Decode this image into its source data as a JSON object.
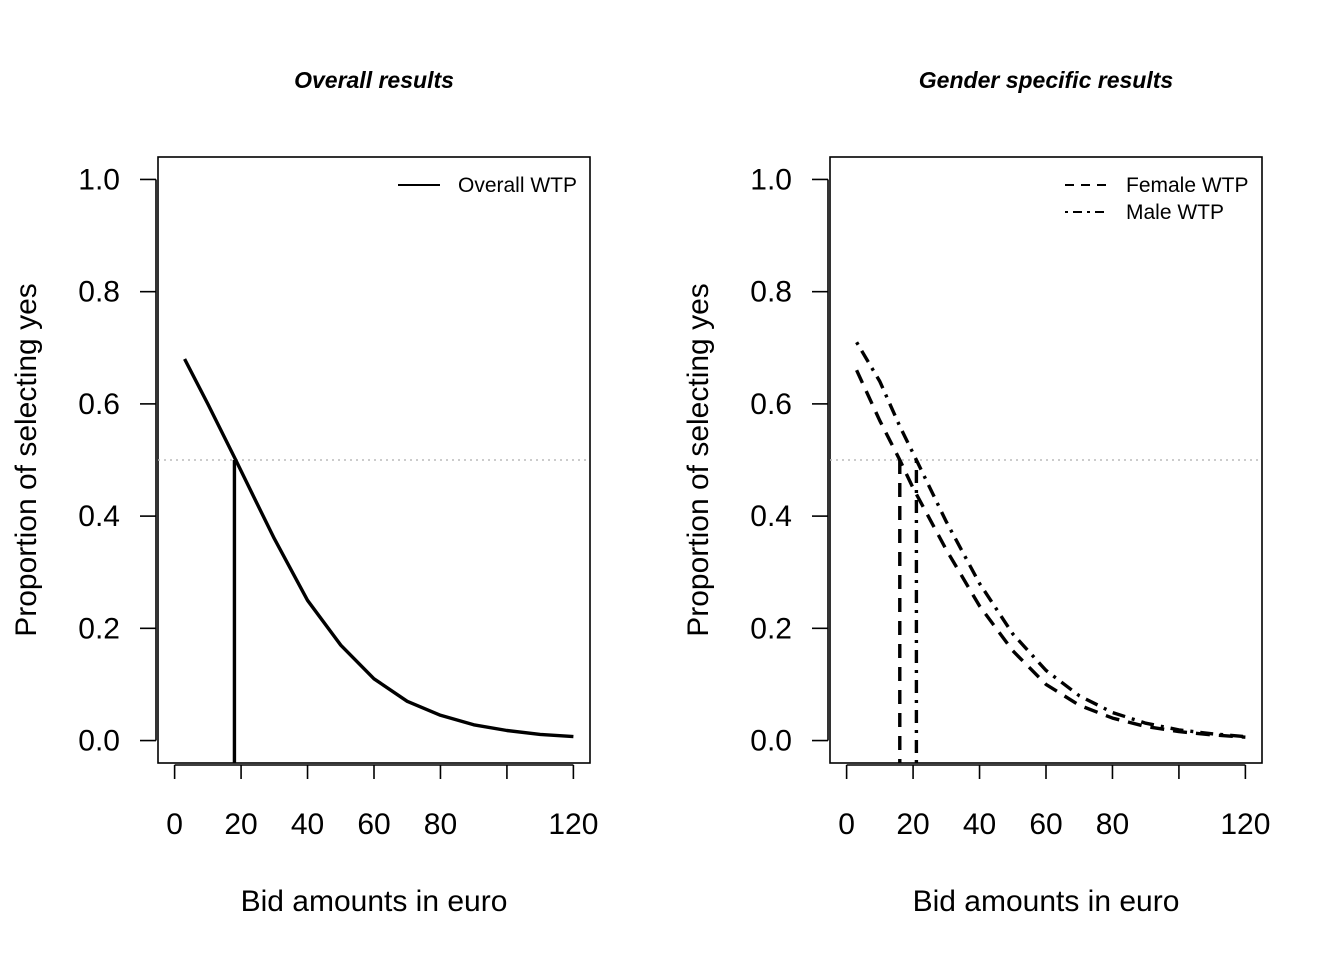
{
  "chart_data": [
    {
      "type": "line",
      "title": "Overall results",
      "xlabel": "Bid amounts in euro",
      "ylabel": "Proportion of selecting yes",
      "xlim": [
        -5,
        125
      ],
      "ylim": [
        -0.04,
        1.04
      ],
      "xticks": [
        0,
        20,
        40,
        60,
        80,
        100,
        120
      ],
      "xtick_labels": [
        "0",
        "20",
        "40",
        "60",
        "80",
        "",
        "120"
      ],
      "yticks": [
        0.0,
        0.2,
        0.4,
        0.6,
        0.8,
        1.0
      ],
      "ytick_labels": [
        "0.0",
        "0.2",
        "0.4",
        "0.6",
        "0.8",
        "1.0"
      ],
      "grid": false,
      "legend_position": "top-right",
      "reference_line": {
        "y": 0.5,
        "style": "dotted",
        "color": "#bbbbbb"
      },
      "series": [
        {
          "name": "Overall WTP",
          "dash": "solid",
          "x": [
            3,
            10,
            18,
            25,
            30,
            40,
            50,
            60,
            70,
            80,
            90,
            100,
            110,
            120
          ],
          "y": [
            0.68,
            0.6,
            0.505,
            0.42,
            0.36,
            0.25,
            0.17,
            0.11,
            0.07,
            0.045,
            0.028,
            0.018,
            0.011,
            0.007
          ]
        }
      ],
      "vlines": [
        {
          "series": "Overall WTP",
          "x": 18,
          "y_top": 0.5,
          "dash": "solid"
        }
      ]
    },
    {
      "type": "line",
      "title": "Gender specific results",
      "xlabel": "Bid amounts in euro",
      "ylabel": "Proportion of selecting yes",
      "xlim": [
        -5,
        125
      ],
      "ylim": [
        -0.04,
        1.04
      ],
      "xticks": [
        0,
        20,
        40,
        60,
        80,
        100,
        120
      ],
      "xtick_labels": [
        "0",
        "20",
        "40",
        "60",
        "80",
        "",
        "120"
      ],
      "yticks": [
        0.0,
        0.2,
        0.4,
        0.6,
        0.8,
        1.0
      ],
      "ytick_labels": [
        "0.0",
        "0.2",
        "0.4",
        "0.6",
        "0.8",
        "1.0"
      ],
      "grid": false,
      "legend_position": "top-right",
      "reference_line": {
        "y": 0.5,
        "style": "dotted",
        "color": "#bbbbbb"
      },
      "series": [
        {
          "name": "Female WTP",
          "dash": "dashed",
          "x": [
            3,
            10,
            16,
            20,
            30,
            40,
            50,
            60,
            70,
            80,
            90,
            100,
            110,
            120
          ],
          "y": [
            0.66,
            0.57,
            0.5,
            0.45,
            0.34,
            0.24,
            0.16,
            0.1,
            0.063,
            0.04,
            0.025,
            0.016,
            0.01,
            0.006
          ]
        },
        {
          "name": "Male WTP",
          "dash": "dotdash",
          "x": [
            3,
            10,
            16,
            21,
            30,
            40,
            50,
            60,
            70,
            80,
            90,
            100,
            110,
            120
          ],
          "y": [
            0.71,
            0.64,
            0.56,
            0.5,
            0.39,
            0.28,
            0.19,
            0.125,
            0.08,
            0.05,
            0.031,
            0.019,
            0.012,
            0.007
          ]
        }
      ],
      "vlines": [
        {
          "series": "Female WTP",
          "x": 16,
          "y_top": 0.5,
          "dash": "dashed"
        },
        {
          "series": "Male WTP",
          "x": 21,
          "y_top": 0.5,
          "dash": "dotdash"
        }
      ]
    }
  ]
}
